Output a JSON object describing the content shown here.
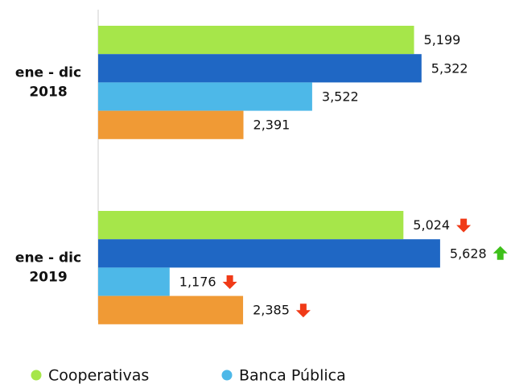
{
  "chart_data": {
    "type": "bar",
    "orientation": "horizontal",
    "categories": [
      [
        "ene - dic",
        "2018"
      ],
      [
        "ene - dic",
        "2019"
      ]
    ],
    "series": [
      {
        "name": "Cooperativas",
        "color": "#a6e64a",
        "values": [
          5199,
          5024
        ],
        "value_labels": [
          "5,199",
          "5,024"
        ]
      },
      {
        "color": "#1f67c4",
        "values": [
          5322,
          5628
        ],
        "value_labels": [
          "5,322",
          "5,628"
        ]
      },
      {
        "name": "Banca Pública",
        "color": "#4db8e8",
        "values": [
          3522,
          1176
        ],
        "value_labels": [
          "3,522",
          "1,176"
        ]
      },
      {
        "color": "#f09a35",
        "values": [
          2391,
          2385
        ],
        "value_labels": [
          "2,391",
          "2,385"
        ]
      }
    ],
    "xlim": [
      0,
      6000
    ],
    "legend": "bottom"
  }
}
